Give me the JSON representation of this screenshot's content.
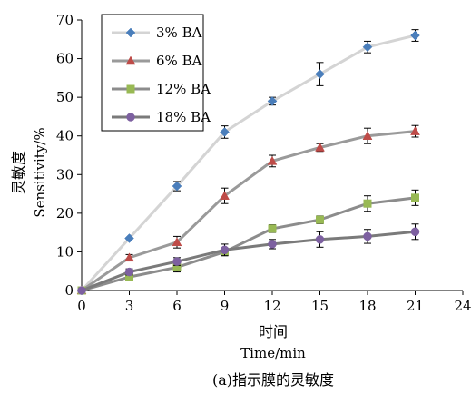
{
  "chart_data": {
    "type": "line",
    "caption": "(a)指示膜的灵敏度",
    "xlabel_cn": "时间",
    "xlabel": "Time/min",
    "ylabel_cn": "灵敏度",
    "ylabel": "Sensitivity/%",
    "xlim": [
      0,
      24
    ],
    "ylim": [
      0,
      70
    ],
    "x_ticks": [
      0,
      3,
      6,
      9,
      12,
      15,
      18,
      21,
      24
    ],
    "y_ticks": [
      0,
      10,
      20,
      30,
      40,
      50,
      60,
      70
    ],
    "legend_position": "top-left",
    "x": [
      0,
      3,
      6,
      9,
      12,
      15,
      18,
      21
    ],
    "series": [
      {
        "name": "3% BA",
        "marker": "diamond",
        "marker_color": "#4a7ebb",
        "line_color": "#d4d4d4",
        "values": [
          0,
          13.5,
          27,
          41,
          49,
          56,
          63,
          66
        ],
        "errors": [
          0,
          0,
          1.2,
          1.6,
          1,
          3,
          1.5,
          1.5
        ]
      },
      {
        "name": "6% BA",
        "marker": "triangle",
        "marker_color": "#be4b48",
        "line_color": "#9a9a9a",
        "values": [
          0,
          8.5,
          12.5,
          24.5,
          33.5,
          37,
          40,
          41.2
        ],
        "errors": [
          0,
          0.8,
          1.5,
          2,
          1.5,
          1,
          2,
          1.5
        ]
      },
      {
        "name": "12% BA",
        "marker": "square",
        "marker_color": "#98b954",
        "line_color": "#8c8c8c",
        "values": [
          0,
          3.5,
          6,
          10,
          16,
          18.3,
          22.5,
          24
        ],
        "errors": [
          0,
          1,
          1.2,
          1,
          1,
          1,
          2,
          2
        ]
      },
      {
        "name": "18% BA",
        "marker": "circle",
        "marker_color": "#7d60a0",
        "line_color": "#7a7a7a",
        "values": [
          0,
          4.8,
          7.5,
          10.5,
          12,
          13.2,
          14,
          15.2
        ],
        "errors": [
          0,
          0.8,
          1,
          1.5,
          1.2,
          2,
          1.8,
          2
        ]
      }
    ]
  }
}
